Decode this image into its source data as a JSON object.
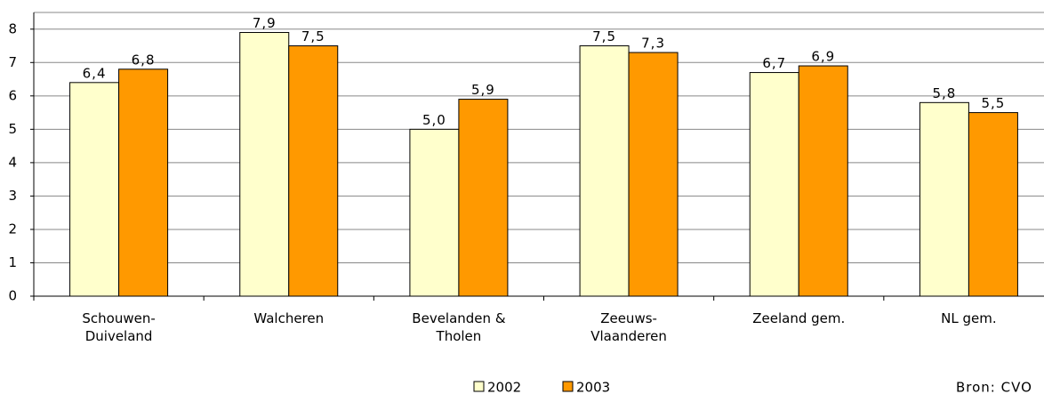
{
  "chart_data": {
    "type": "bar",
    "categories": [
      "Schouwen-\nDuiveland",
      "Walcheren",
      "Bevelanden &\nTholen",
      "Zeeuws-\nVlaanderen",
      "Zeeland gem.",
      "NL gem."
    ],
    "series": [
      {
        "name": "2002",
        "color": "#ffffcc",
        "values": [
          6.4,
          7.9,
          5.0,
          7.5,
          6.7,
          5.8
        ],
        "value_labels": [
          "6,4",
          "7,9",
          "5,0",
          "7,5",
          "6,7",
          "5,8"
        ]
      },
      {
        "name": "2003",
        "color": "#ff9900",
        "values": [
          6.8,
          7.5,
          5.9,
          7.3,
          6.9,
          5.5
        ],
        "value_labels": [
          "6,8",
          "7,5",
          "5,9",
          "7,3",
          "6,9",
          "5,5"
        ]
      }
    ],
    "ylim": [
      0,
      8.5
    ],
    "yticks": [
      0,
      1,
      2,
      3,
      4,
      5,
      6,
      7,
      8
    ],
    "grid": true,
    "source": "Bron: CVO"
  }
}
